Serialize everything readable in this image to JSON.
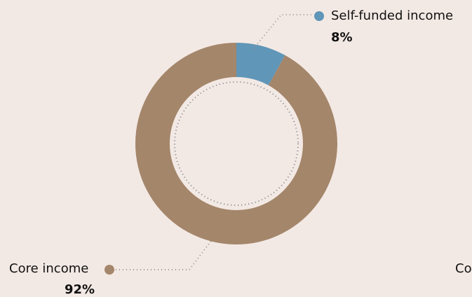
{
  "chart_data": {
    "type": "pie",
    "title": "",
    "slices": [
      {
        "name": "Self-funded income",
        "value": 8,
        "label_value": "8%",
        "color": "#6096b8"
      },
      {
        "name": "Core income",
        "value": 92,
        "label_value": "92%",
        "color": "#a4866b"
      }
    ]
  },
  "partial_label_right": "Co",
  "colors": {
    "background": "#f3e9e4",
    "leader": "#9a8f8c",
    "inner_dots": "#7a7f8c"
  }
}
